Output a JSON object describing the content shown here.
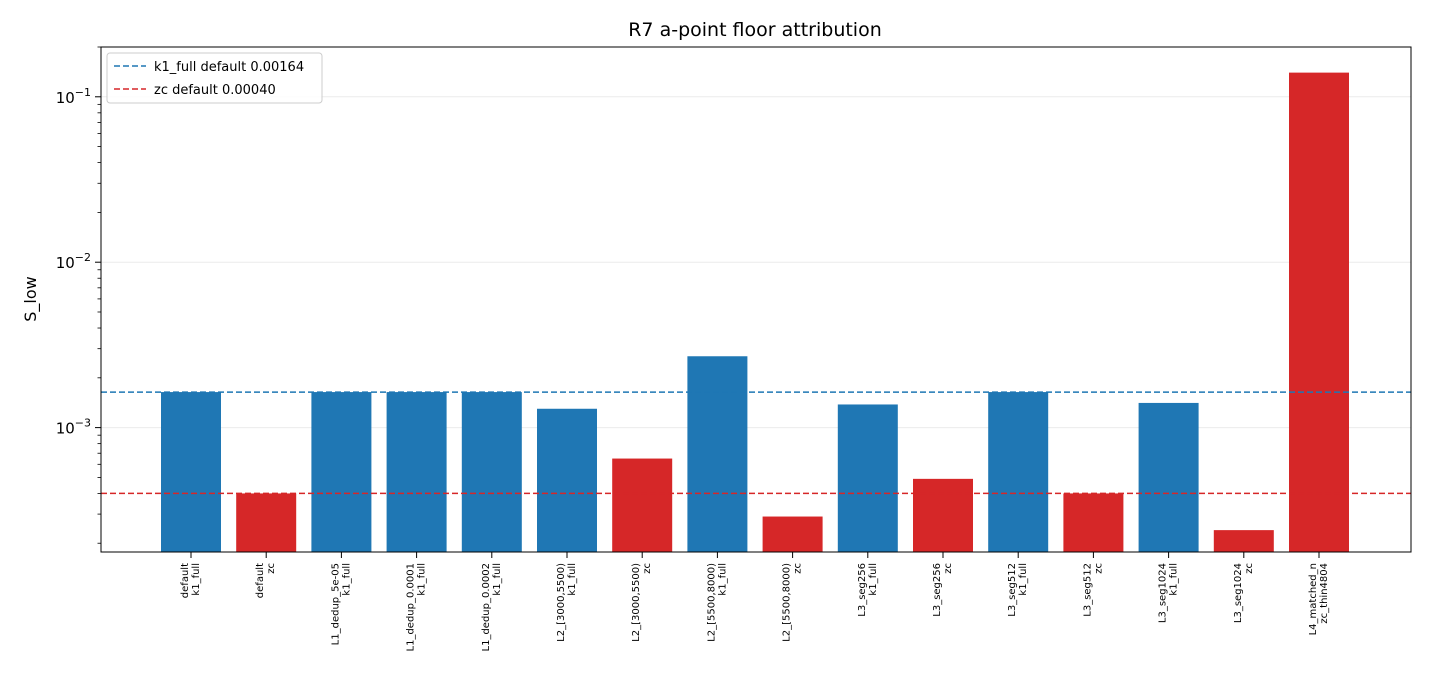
{
  "chart_data": {
    "type": "bar",
    "title": "R7 a-point floor attribution",
    "xlabel": "",
    "ylabel": "S_low",
    "yscale": "log",
    "ylim": [
      0.000177,
      0.2
    ],
    "grid": "y-major",
    "legend_position": "top-left",
    "categories": [
      [
        "default",
        "k1_full"
      ],
      [
        "default",
        "zc"
      ],
      [
        "L1_dedup_5e-05",
        "k1_full"
      ],
      [
        "L1_dedup_0.0001",
        "k1_full"
      ],
      [
        "L1_dedup_0.0002",
        "k1_full"
      ],
      [
        "L2_[3000,5500)",
        "k1_full"
      ],
      [
        "L2_[3000,5500)",
        "zc"
      ],
      [
        "L2_[5500,8000)",
        "k1_full"
      ],
      [
        "L2_[5500,8000)",
        "zc"
      ],
      [
        "L3_seg256",
        "k1_full"
      ],
      [
        "L3_seg256",
        "zc"
      ],
      [
        "L3_seg512",
        "k1_full"
      ],
      [
        "L3_seg512",
        "zc"
      ],
      [
        "L3_seg1024",
        "k1_full"
      ],
      [
        "L3_seg1024",
        "zc"
      ],
      [
        "L4_matched_n",
        "zc_thin4804"
      ]
    ],
    "values": [
      0.00164,
      0.0004,
      0.00164,
      0.00164,
      0.00164,
      0.0013,
      0.00065,
      0.0027,
      0.00029,
      0.00138,
      0.00049,
      0.00164,
      0.0004,
      0.00141,
      0.00024,
      0.14
    ],
    "bar_colors": [
      "#1f77b4",
      "#d62728",
      "#1f77b4",
      "#1f77b4",
      "#1f77b4",
      "#1f77b4",
      "#d62728",
      "#1f77b4",
      "#d62728",
      "#1f77b4",
      "#d62728",
      "#1f77b4",
      "#d62728",
      "#1f77b4",
      "#d62728",
      "#d62728"
    ],
    "reference_lines": [
      {
        "label": "k1_full default 0.00164",
        "value": 0.00164,
        "color": "#1f77b4",
        "style": "dashed"
      },
      {
        "label": "zc default 0.00040",
        "value": 0.0004,
        "color": "#d62728",
        "style": "dashed"
      }
    ],
    "ytick_labels": [
      {
        "base": "10",
        "exp": "−3",
        "value": 0.001
      },
      {
        "base": "10",
        "exp": "−2",
        "value": 0.01
      },
      {
        "base": "10",
        "exp": "−1",
        "value": 0.1
      }
    ]
  }
}
